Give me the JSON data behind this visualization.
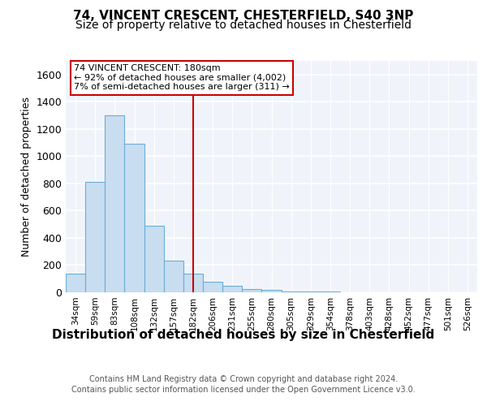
{
  "title_line1": "74, VINCENT CRESCENT, CHESTERFIELD, S40 3NP",
  "title_line2": "Size of property relative to detached houses in Chesterfield",
  "xlabel": "Distribution of detached houses by size in Chesterfield",
  "ylabel": "Number of detached properties",
  "footer_line1": "Contains HM Land Registry data © Crown copyright and database right 2024.",
  "footer_line2": "Contains public sector information licensed under the Open Government Licence v3.0.",
  "categories": [
    "34sqm",
    "59sqm",
    "83sqm",
    "108sqm",
    "132sqm",
    "157sqm",
    "182sqm",
    "206sqm",
    "231sqm",
    "255sqm",
    "280sqm",
    "305sqm",
    "329sqm",
    "354sqm",
    "378sqm",
    "403sqm",
    "428sqm",
    "452sqm",
    "477sqm",
    "501sqm",
    "526sqm"
  ],
  "values": [
    140,
    810,
    1300,
    1090,
    490,
    235,
    135,
    75,
    50,
    25,
    15,
    5,
    5,
    3,
    0,
    0,
    0,
    0,
    0,
    0,
    0
  ],
  "bar_color": "#c8ddf0",
  "bar_edge_color": "#6aaed6",
  "marker_color": "#cc0000",
  "marker_index": 6,
  "annotation_text": "74 VINCENT CRESCENT: 180sqm\n← 92% of detached houses are smaller (4,002)\n7% of semi-detached houses are larger (311) →",
  "annotation_box_color": "#ffffff",
  "annotation_box_edge": "#cc0000",
  "ylim": [
    0,
    1700
  ],
  "yticks": [
    0,
    200,
    400,
    600,
    800,
    1000,
    1200,
    1400,
    1600
  ],
  "bg_color": "#ffffff",
  "plot_bg_color": "#f0f4fa",
  "grid_color": "#ffffff",
  "title_fontsize": 11,
  "subtitle_fontsize": 10,
  "xlabel_fontsize": 11,
  "ylabel_fontsize": 9,
  "footer_fontsize": 7
}
